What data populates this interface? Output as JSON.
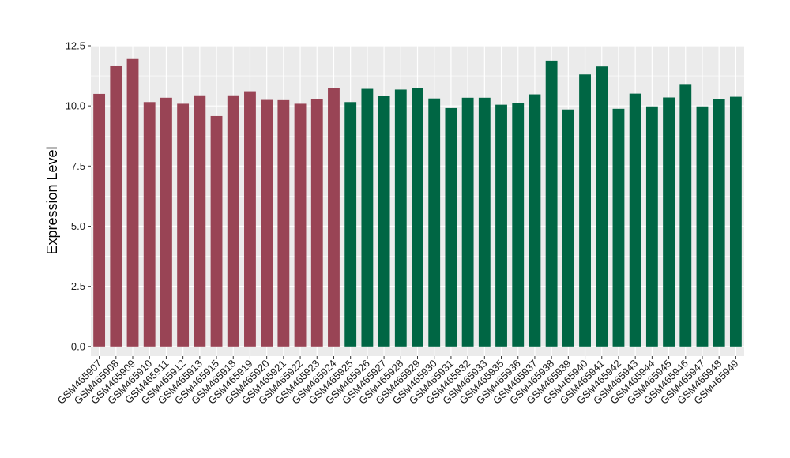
{
  "chart_data": {
    "type": "bar",
    "title": "",
    "xlabel": "",
    "ylabel": "Expression Level",
    "ylim": [
      -0.4,
      12.5
    ],
    "yticks": [
      0.0,
      2.5,
      5.0,
      7.5,
      10.0,
      12.5
    ],
    "ytick_labels": [
      "0.0",
      "2.5",
      "5.0",
      "7.5",
      "10.0",
      "12.5"
    ],
    "grid": true,
    "legend": "none",
    "categories": [
      "GSM465907",
      "GSM465908",
      "GSM465909",
      "GSM465910",
      "GSM465911",
      "GSM465912",
      "GSM465913",
      "GSM465915",
      "GSM465918",
      "GSM465919",
      "GSM465920",
      "GSM465921",
      "GSM465922",
      "GSM465923",
      "GSM465924",
      "GSM465925",
      "GSM465926",
      "GSM465927",
      "GSM465928",
      "GSM465929",
      "GSM465930",
      "GSM465931",
      "GSM465932",
      "GSM465933",
      "GSM465935",
      "GSM465936",
      "GSM465937",
      "GSM465938",
      "GSM465939",
      "GSM465940",
      "GSM465941",
      "GSM465942",
      "GSM465943",
      "GSM465944",
      "GSM465945",
      "GSM465946",
      "GSM465947",
      "GSM465948",
      "GSM465949"
    ],
    "values": [
      10.5,
      11.68,
      11.95,
      10.16,
      10.34,
      10.09,
      10.44,
      9.58,
      10.44,
      10.61,
      10.25,
      10.24,
      10.09,
      10.28,
      10.75,
      10.16,
      10.71,
      10.41,
      10.68,
      10.75,
      10.31,
      9.91,
      10.34,
      10.34,
      10.05,
      10.12,
      10.48,
      11.88,
      9.85,
      11.31,
      11.64,
      9.88,
      10.51,
      9.98,
      10.35,
      10.88,
      9.98,
      10.27,
      10.38
    ],
    "colors": [
      "#994455",
      "#994455",
      "#994455",
      "#994455",
      "#994455",
      "#994455",
      "#994455",
      "#994455",
      "#994455",
      "#994455",
      "#994455",
      "#994455",
      "#994455",
      "#994455",
      "#994455",
      "#006644",
      "#006644",
      "#006644",
      "#006644",
      "#006644",
      "#006644",
      "#006644",
      "#006644",
      "#006644",
      "#006644",
      "#006644",
      "#006644",
      "#006644",
      "#006644",
      "#006644",
      "#006644",
      "#006644",
      "#006644",
      "#006644",
      "#006644",
      "#006644",
      "#006644",
      "#006644",
      "#006644"
    ],
    "panel_color": "#ebebeb",
    "grid_color": "#ffffff"
  }
}
